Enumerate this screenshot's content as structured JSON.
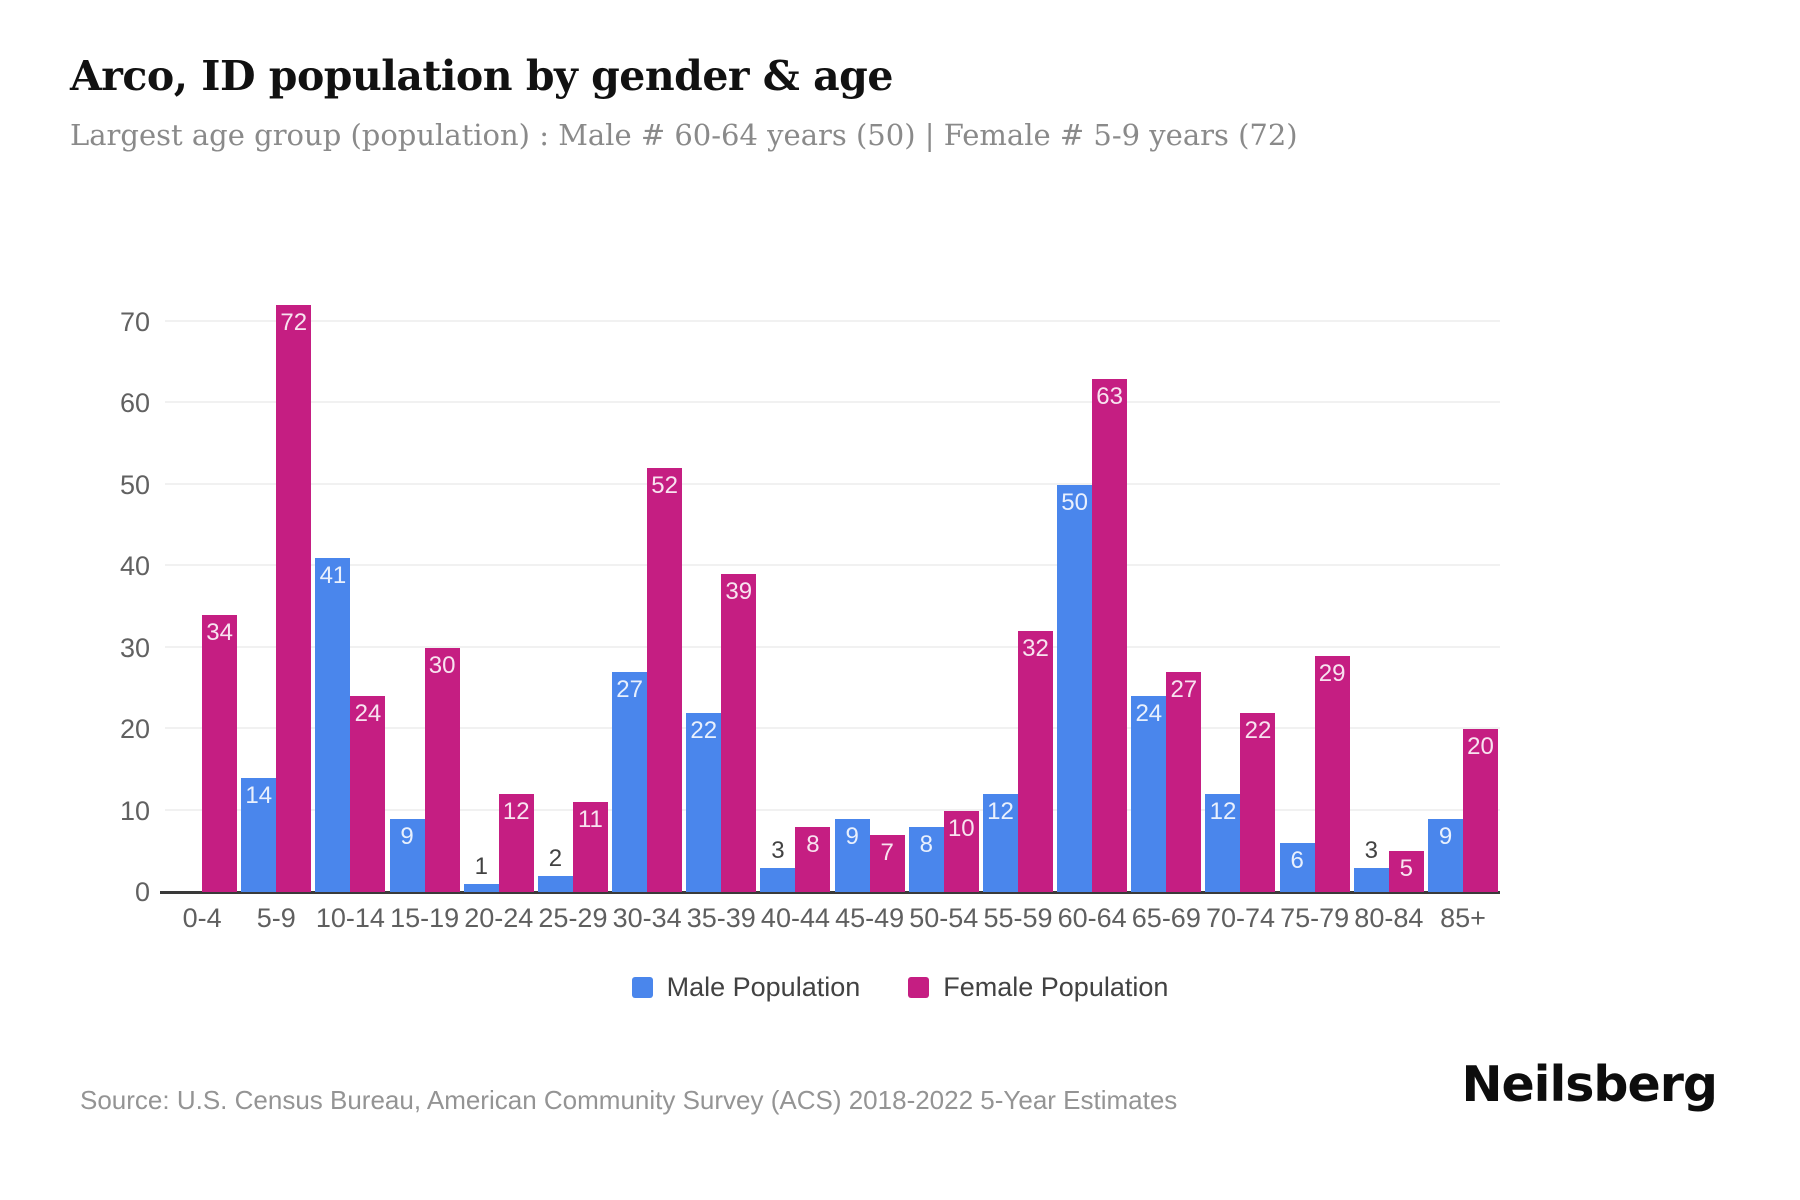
{
  "header": {
    "title": "Arco, ID population by gender & age",
    "subtitle": "Largest age group (population) : Male # 60-64 years (50) | Female # 5-9 years (72)"
  },
  "chart_data": {
    "type": "bar",
    "title": "Arco, ID population by gender & age",
    "categories": [
      "0-4",
      "5-9",
      "10-14",
      "15-19",
      "20-24",
      "25-29",
      "30-34",
      "35-39",
      "40-44",
      "45-49",
      "50-54",
      "55-59",
      "60-64",
      "65-69",
      "70-74",
      "75-79",
      "80-84",
      "85+"
    ],
    "series": [
      {
        "name": "Male Population",
        "color": "#4a86ec",
        "values": [
          0,
          14,
          41,
          9,
          1,
          2,
          27,
          22,
          3,
          9,
          8,
          12,
          50,
          24,
          12,
          6,
          3,
          9
        ]
      },
      {
        "name": "Female Population",
        "color": "#c51e82",
        "values": [
          34,
          72,
          24,
          30,
          12,
          11,
          52,
          39,
          8,
          7,
          10,
          32,
          63,
          27,
          22,
          29,
          5,
          20
        ]
      }
    ],
    "xlabel": "",
    "ylabel": "",
    "ylim": [
      0,
      72
    ],
    "yticks": [
      0,
      10,
      20,
      30,
      40,
      50,
      60,
      70
    ],
    "grid": true,
    "legend_position": "bottom",
    "data_labels": true
  },
  "colors": {
    "male": "#4a86ec",
    "female": "#c51e82",
    "gridline": "#f1f1f1",
    "axis_line": "#3a3a3a",
    "tick_text": "#616161",
    "subtitle_text": "#8a8a8a",
    "source_text": "#949494"
  },
  "footer": {
    "source": "Source: U.S. Census Bureau, American Community Survey (ACS) 2018-2022 5-Year Estimates",
    "brand": "Neilsberg"
  }
}
